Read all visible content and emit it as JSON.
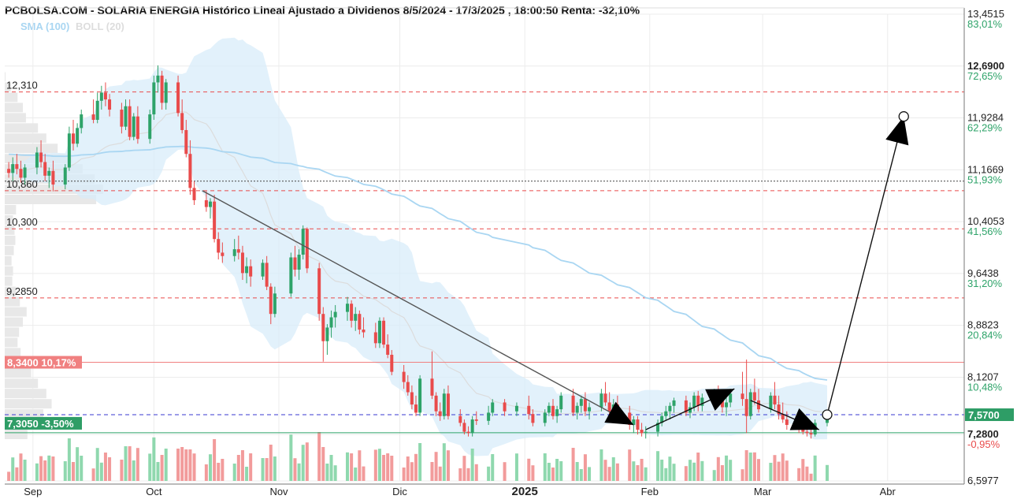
{
  "header": {
    "title": "PCBOLSA.COM - SOLARIA ENERGIA Histórico Lineal Ajustado a Dividenos 8/5/2024 - 17/3/2025 , 18:00:50 Renta: -32,10%",
    "legend_sma": "SMA (100)",
    "legend_boll": "BOLL (20)"
  },
  "chart_data": {
    "type": "candlestick",
    "x_axis": {
      "labels": [
        "Sep",
        "Oct",
        "Nov",
        "Dic",
        "2025",
        "Feb",
        "Mar",
        "Abr"
      ],
      "label_dates": [
        "2024-09-01",
        "2024-10-01",
        "2024-11-01",
        "2024-12-01",
        "2025-01-01",
        "2025-02-01",
        "2025-03-01",
        "2025-04-01"
      ],
      "range": [
        "2024-08-25",
        "2025-04-20"
      ]
    },
    "y_axis": {
      "range": [
        6.5977,
        13.4515
      ],
      "ticks": [
        {
          "value": 13.4515,
          "label": "13,4515",
          "pct": "83,01%"
        },
        {
          "value": 12.69,
          "label": "12,6900",
          "pct": "72,65%"
        },
        {
          "value": 11.9284,
          "label": "11,9284",
          "pct": "62,29%"
        },
        {
          "value": 11.1669,
          "label": "11,1669",
          "pct": "51,93%"
        },
        {
          "value": 10.4053,
          "label": "10,4053",
          "pct": "41,56%"
        },
        {
          "value": 9.6438,
          "label": "9,6438",
          "pct": "31,20%"
        },
        {
          "value": 8.8823,
          "label": "8,8823",
          "pct": "20,84%"
        },
        {
          "value": 8.1207,
          "label": "8,1207",
          "pct": "10,48%"
        },
        {
          "value": 7.28,
          "label": "7,2800",
          "pct": "-0,95%"
        },
        {
          "value": 6.5977,
          "label": "6,5977",
          "pct": ""
        }
      ],
      "current_price": "7,5700"
    },
    "levels": [
      {
        "value": 12.31,
        "label": "12,310",
        "style": "dashed-red"
      },
      {
        "value": 10.86,
        "label": "10,860",
        "style": "dashed-red"
      },
      {
        "value": 10.3,
        "label": "10,300",
        "style": "dashed-red"
      },
      {
        "value": 9.285,
        "label": "9,2850",
        "style": "dashed-red"
      },
      {
        "value": 8.34,
        "label": "8,3400",
        "pct": "10,17%",
        "style": "solid-red-box"
      },
      {
        "value": 7.305,
        "label": "7,3050",
        "pct": "-3,50%",
        "style": "solid-green-box"
      },
      {
        "value": 7.57,
        "style": "dashed-blue"
      },
      {
        "value": 11.0,
        "style": "dotted-black"
      }
    ],
    "candles": [
      [
        "2024-08-26",
        11.18,
        11.28,
        11.05,
        11.12
      ],
      [
        "2024-08-27",
        11.12,
        11.35,
        11.0,
        11.25
      ],
      [
        "2024-08-28",
        11.25,
        11.4,
        11.1,
        11.18
      ],
      [
        "2024-08-29",
        11.18,
        11.3,
        10.98,
        11.05
      ],
      [
        "2024-08-30",
        11.05,
        11.25,
        10.95,
        11.2
      ],
      [
        "2024-09-02",
        11.2,
        11.5,
        11.1,
        11.42
      ],
      [
        "2024-09-03",
        11.42,
        11.6,
        11.2,
        11.28
      ],
      [
        "2024-09-04",
        11.28,
        11.4,
        11.0,
        11.08
      ],
      [
        "2024-09-05",
        11.08,
        11.2,
        10.9,
        11.15
      ],
      [
        "2024-09-06",
        11.15,
        11.3,
        10.85,
        10.95
      ],
      [
        "2024-09-09",
        10.95,
        11.25,
        10.88,
        11.2
      ],
      [
        "2024-09-10",
        11.2,
        11.8,
        11.15,
        11.7
      ],
      [
        "2024-09-11",
        11.7,
        11.9,
        11.45,
        11.55
      ],
      [
        "2024-09-12",
        11.55,
        11.85,
        11.5,
        11.78
      ],
      [
        "2024-09-13",
        11.78,
        12.05,
        11.7,
        11.98
      ],
      [
        "2024-09-16",
        11.98,
        12.2,
        11.85,
        11.9
      ],
      [
        "2024-09-17",
        11.9,
        12.3,
        11.85,
        12.18
      ],
      [
        "2024-09-18",
        12.18,
        12.4,
        12.05,
        12.3
      ],
      [
        "2024-09-19",
        12.3,
        12.45,
        12.1,
        12.2
      ],
      [
        "2024-09-20",
        12.2,
        12.28,
        11.95,
        12.05
      ],
      [
        "2024-09-23",
        12.05,
        12.15,
        11.7,
        11.8
      ],
      [
        "2024-09-24",
        11.8,
        12.2,
        11.75,
        12.1
      ],
      [
        "2024-09-25",
        12.1,
        12.2,
        11.6,
        11.65
      ],
      [
        "2024-09-26",
        11.65,
        12.0,
        11.6,
        11.95
      ],
      [
        "2024-09-27",
        11.95,
        12.1,
        11.55,
        11.62
      ],
      [
        "2024-09-30",
        11.62,
        12.05,
        11.55,
        11.98
      ],
      [
        "2024-10-01",
        11.98,
        12.55,
        11.9,
        12.45
      ],
      [
        "2024-10-02",
        12.45,
        12.7,
        12.3,
        12.55
      ],
      [
        "2024-10-03",
        12.55,
        12.62,
        12.05,
        12.15
      ],
      [
        "2024-10-04",
        12.15,
        12.5,
        12.05,
        12.45
      ],
      [
        "2024-10-07",
        12.45,
        12.55,
        11.95,
        12.0
      ],
      [
        "2024-10-08",
        12.0,
        12.2,
        11.7,
        11.75
      ],
      [
        "2024-10-09",
        11.75,
        11.9,
        11.35,
        11.4
      ],
      [
        "2024-10-10",
        11.4,
        11.6,
        10.8,
        10.9
      ],
      [
        "2024-10-11",
        10.9,
        11.0,
        10.65,
        10.72
      ],
      [
        "2024-10-14",
        10.72,
        10.85,
        10.55,
        10.62
      ],
      [
        "2024-10-15",
        10.62,
        10.75,
        10.45,
        10.7
      ],
      [
        "2024-10-16",
        10.7,
        10.8,
        10.1,
        10.15
      ],
      [
        "2024-10-17",
        10.15,
        10.25,
        9.85,
        9.95
      ],
      [
        "2024-10-18",
        9.95,
        10.1,
        9.8,
        9.9
      ],
      [
        "2024-10-21",
        9.9,
        10.15,
        9.82,
        10.0
      ],
      [
        "2024-10-22",
        10.0,
        10.2,
        9.85,
        9.95
      ],
      [
        "2024-10-23",
        9.95,
        10.05,
        9.55,
        9.65
      ],
      [
        "2024-10-24",
        9.65,
        9.88,
        9.5,
        9.75
      ],
      [
        "2024-10-25",
        9.75,
        9.85,
        9.45,
        9.6
      ],
      [
        "2024-10-28",
        9.6,
        9.85,
        9.55,
        9.8
      ],
      [
        "2024-10-29",
        9.8,
        9.9,
        9.4,
        9.45
      ],
      [
        "2024-10-30",
        9.45,
        9.5,
        8.9,
        9.05
      ],
      [
        "2024-10-31",
        9.05,
        9.45,
        9.0,
        9.35
      ],
      [
        "2024-11-04",
        9.35,
        9.95,
        9.3,
        9.88
      ],
      [
        "2024-11-05",
        9.88,
        10.05,
        9.6,
        9.7
      ],
      [
        "2024-11-06",
        9.7,
        10.0,
        9.55,
        9.92
      ],
      [
        "2024-11-07",
        9.92,
        10.35,
        9.85,
        10.3
      ],
      [
        "2024-11-08",
        10.3,
        10.32,
        9.65,
        9.72
      ],
      [
        "2024-11-11",
        9.72,
        9.8,
        8.95,
        9.05
      ],
      [
        "2024-11-12",
        9.05,
        9.15,
        8.35,
        8.65
      ],
      [
        "2024-11-13",
        8.65,
        8.9,
        8.45,
        8.85
      ],
      [
        "2024-11-14",
        8.85,
        9.1,
        8.7,
        9.0
      ],
      [
        "2024-11-15",
        9.0,
        9.18,
        8.85,
        9.08
      ],
      [
        "2024-11-18",
        9.08,
        9.3,
        8.95,
        9.2
      ],
      [
        "2024-11-19",
        9.2,
        9.25,
        8.85,
        8.95
      ],
      [
        "2024-11-20",
        8.95,
        9.15,
        8.8,
        9.05
      ],
      [
        "2024-11-21",
        9.05,
        9.1,
        8.75,
        8.82
      ],
      [
        "2024-11-22",
        8.82,
        9.0,
        8.7,
        8.78
      ],
      [
        "2024-11-25",
        8.78,
        8.92,
        8.55,
        8.62
      ],
      [
        "2024-11-26",
        8.62,
        9.0,
        8.55,
        8.95
      ],
      [
        "2024-11-27",
        8.95,
        9.0,
        8.55,
        8.6
      ],
      [
        "2024-11-28",
        8.6,
        8.75,
        8.4,
        8.45
      ],
      [
        "2024-11-29",
        8.45,
        8.52,
        8.15,
        8.2
      ],
      [
        "2024-12-02",
        8.2,
        8.3,
        7.95,
        8.05
      ],
      [
        "2024-12-03",
        8.05,
        8.15,
        7.85,
        7.9
      ],
      [
        "2024-12-04",
        7.9,
        8.0,
        7.65,
        7.72
      ],
      [
        "2024-12-05",
        7.72,
        7.85,
        7.55,
        7.6
      ],
      [
        "2024-12-06",
        7.6,
        8.15,
        7.55,
        8.1
      ],
      [
        "2024-12-09",
        8.1,
        8.5,
        7.8,
        7.85
      ],
      [
        "2024-12-10",
        7.85,
        7.9,
        7.55,
        7.62
      ],
      [
        "2024-12-11",
        7.62,
        7.75,
        7.48,
        7.55
      ],
      [
        "2024-12-12",
        7.55,
        7.95,
        7.5,
        7.88
      ],
      [
        "2024-12-13",
        7.88,
        8.0,
        7.5,
        7.55
      ],
      [
        "2024-12-16",
        7.55,
        7.65,
        7.4,
        7.45
      ],
      [
        "2024-12-17",
        7.45,
        7.5,
        7.28,
        7.32
      ],
      [
        "2024-12-18",
        7.32,
        7.4,
        7.25,
        7.3
      ],
      [
        "2024-12-19",
        7.3,
        7.55,
        7.25,
        7.5
      ],
      [
        "2024-12-20",
        7.5,
        7.62,
        7.42,
        7.48
      ],
      [
        "2024-12-23",
        7.48,
        7.7,
        7.42,
        7.6
      ],
      [
        "2024-12-24",
        7.6,
        7.8,
        7.55,
        7.75
      ],
      [
        "2024-12-27",
        7.75,
        7.8,
        7.55,
        7.62
      ],
      [
        "2024-12-30",
        7.62,
        7.75,
        7.55,
        7.7
      ],
      [
        "2025-01-02",
        7.7,
        7.85,
        7.5,
        7.58
      ],
      [
        "2025-01-03",
        7.58,
        7.65,
        7.4,
        7.45
      ],
      [
        "2025-01-06",
        7.45,
        7.65,
        7.4,
        7.6
      ],
      [
        "2025-01-07",
        7.6,
        7.75,
        7.55,
        7.7
      ],
      [
        "2025-01-08",
        7.7,
        7.8,
        7.5,
        7.55
      ],
      [
        "2025-01-09",
        7.55,
        7.7,
        7.45,
        7.65
      ],
      [
        "2025-01-10",
        7.65,
        7.9,
        7.6,
        7.85
      ],
      [
        "2025-01-13",
        7.85,
        7.95,
        7.55,
        7.6
      ],
      [
        "2025-01-14",
        7.6,
        7.75,
        7.5,
        7.7
      ],
      [
        "2025-01-15",
        7.7,
        7.85,
        7.6,
        7.8
      ],
      [
        "2025-01-16",
        7.8,
        7.9,
        7.55,
        7.62
      ],
      [
        "2025-01-17",
        7.62,
        7.75,
        7.5,
        7.68
      ],
      [
        "2025-01-20",
        7.68,
        7.95,
        7.62,
        7.88
      ],
      [
        "2025-01-21",
        7.88,
        8.05,
        7.7,
        7.75
      ],
      [
        "2025-01-22",
        7.75,
        7.9,
        7.55,
        7.62
      ],
      [
        "2025-01-23",
        7.62,
        7.8,
        7.5,
        7.72
      ],
      [
        "2025-01-24",
        7.72,
        7.85,
        7.55,
        7.6
      ],
      [
        "2025-01-27",
        7.6,
        7.7,
        7.35,
        7.42
      ],
      [
        "2025-01-28",
        7.42,
        7.55,
        7.3,
        7.5
      ],
      [
        "2025-01-29",
        7.5,
        7.55,
        7.28,
        7.35
      ],
      [
        "2025-01-30",
        7.35,
        7.45,
        7.25,
        7.3
      ],
      [
        "2025-01-31",
        7.3,
        7.4,
        7.22,
        7.32
      ],
      [
        "2025-02-03",
        7.32,
        7.5,
        7.25,
        7.45
      ],
      [
        "2025-02-04",
        7.45,
        7.6,
        7.4,
        7.55
      ],
      [
        "2025-02-05",
        7.55,
        7.7,
        7.48,
        7.62
      ],
      [
        "2025-02-06",
        7.62,
        7.75,
        7.5,
        7.7
      ],
      [
        "2025-02-07",
        7.7,
        7.82,
        7.6,
        7.78
      ],
      [
        "2025-02-10",
        7.78,
        7.85,
        7.55,
        7.6
      ],
      [
        "2025-02-11",
        7.6,
        7.75,
        7.52,
        7.68
      ],
      [
        "2025-02-12",
        7.68,
        7.9,
        7.62,
        7.85
      ],
      [
        "2025-02-13",
        7.85,
        7.92,
        7.62,
        7.7
      ],
      [
        "2025-02-14",
        7.7,
        7.88,
        7.62,
        7.82
      ],
      [
        "2025-02-17",
        7.82,
        7.95,
        7.7,
        7.9
      ],
      [
        "2025-02-18",
        7.9,
        8.0,
        7.72,
        7.78
      ],
      [
        "2025-02-19",
        7.78,
        7.9,
        7.6,
        7.68
      ],
      [
        "2025-02-20",
        7.68,
        7.82,
        7.55,
        7.75
      ],
      [
        "2025-02-21",
        7.75,
        7.95,
        7.68,
        7.88
      ],
      [
        "2025-02-24",
        7.88,
        8.2,
        7.7,
        7.8
      ],
      [
        "2025-02-25",
        7.8,
        8.38,
        7.3,
        7.55
      ],
      [
        "2025-02-26",
        7.55,
        7.95,
        7.5,
        7.9
      ],
      [
        "2025-02-27",
        7.9,
        8.1,
        7.72,
        7.78
      ],
      [
        "2025-02-28",
        7.78,
        7.95,
        7.6,
        7.65
      ],
      [
        "2025-03-03",
        7.65,
        7.9,
        7.6,
        7.85
      ],
      [
        "2025-03-04",
        7.85,
        8.05,
        7.65,
        7.72
      ],
      [
        "2025-03-05",
        7.72,
        7.85,
        7.5,
        7.58
      ],
      [
        "2025-03-06",
        7.58,
        7.75,
        7.45,
        7.5
      ],
      [
        "2025-03-07",
        7.5,
        7.62,
        7.35,
        7.42
      ],
      [
        "2025-03-10",
        7.42,
        7.55,
        7.3,
        7.35
      ],
      [
        "2025-03-11",
        7.35,
        7.45,
        7.28,
        7.32
      ],
      [
        "2025-03-12",
        7.32,
        7.42,
        7.25,
        7.3
      ],
      [
        "2025-03-13",
        7.3,
        7.4,
        7.22,
        7.28
      ],
      [
        "2025-03-14",
        7.28,
        7.5,
        7.25,
        7.45
      ],
      [
        "2025-03-17",
        7.45,
        7.6,
        7.4,
        7.57
      ]
    ],
    "volume_color_rule": "green when close >= open, red when close < open",
    "annotations": [
      {
        "type": "arrow",
        "from": [
          "2024-10-13",
          10.86
        ],
        "to": [
          "2025-01-28",
          7.42
        ]
      },
      {
        "type": "arrow",
        "from": [
          "2025-01-31",
          7.35
        ],
        "to": [
          "2025-02-22",
          7.95
        ]
      },
      {
        "type": "arrow",
        "from": [
          "2025-02-26",
          7.78
        ],
        "to": [
          "2025-03-15",
          7.35
        ]
      },
      {
        "type": "arrow",
        "from": [
          "2025-03-17",
          7.57
        ],
        "to": [
          "2025-04-05",
          11.95
        ]
      }
    ]
  }
}
